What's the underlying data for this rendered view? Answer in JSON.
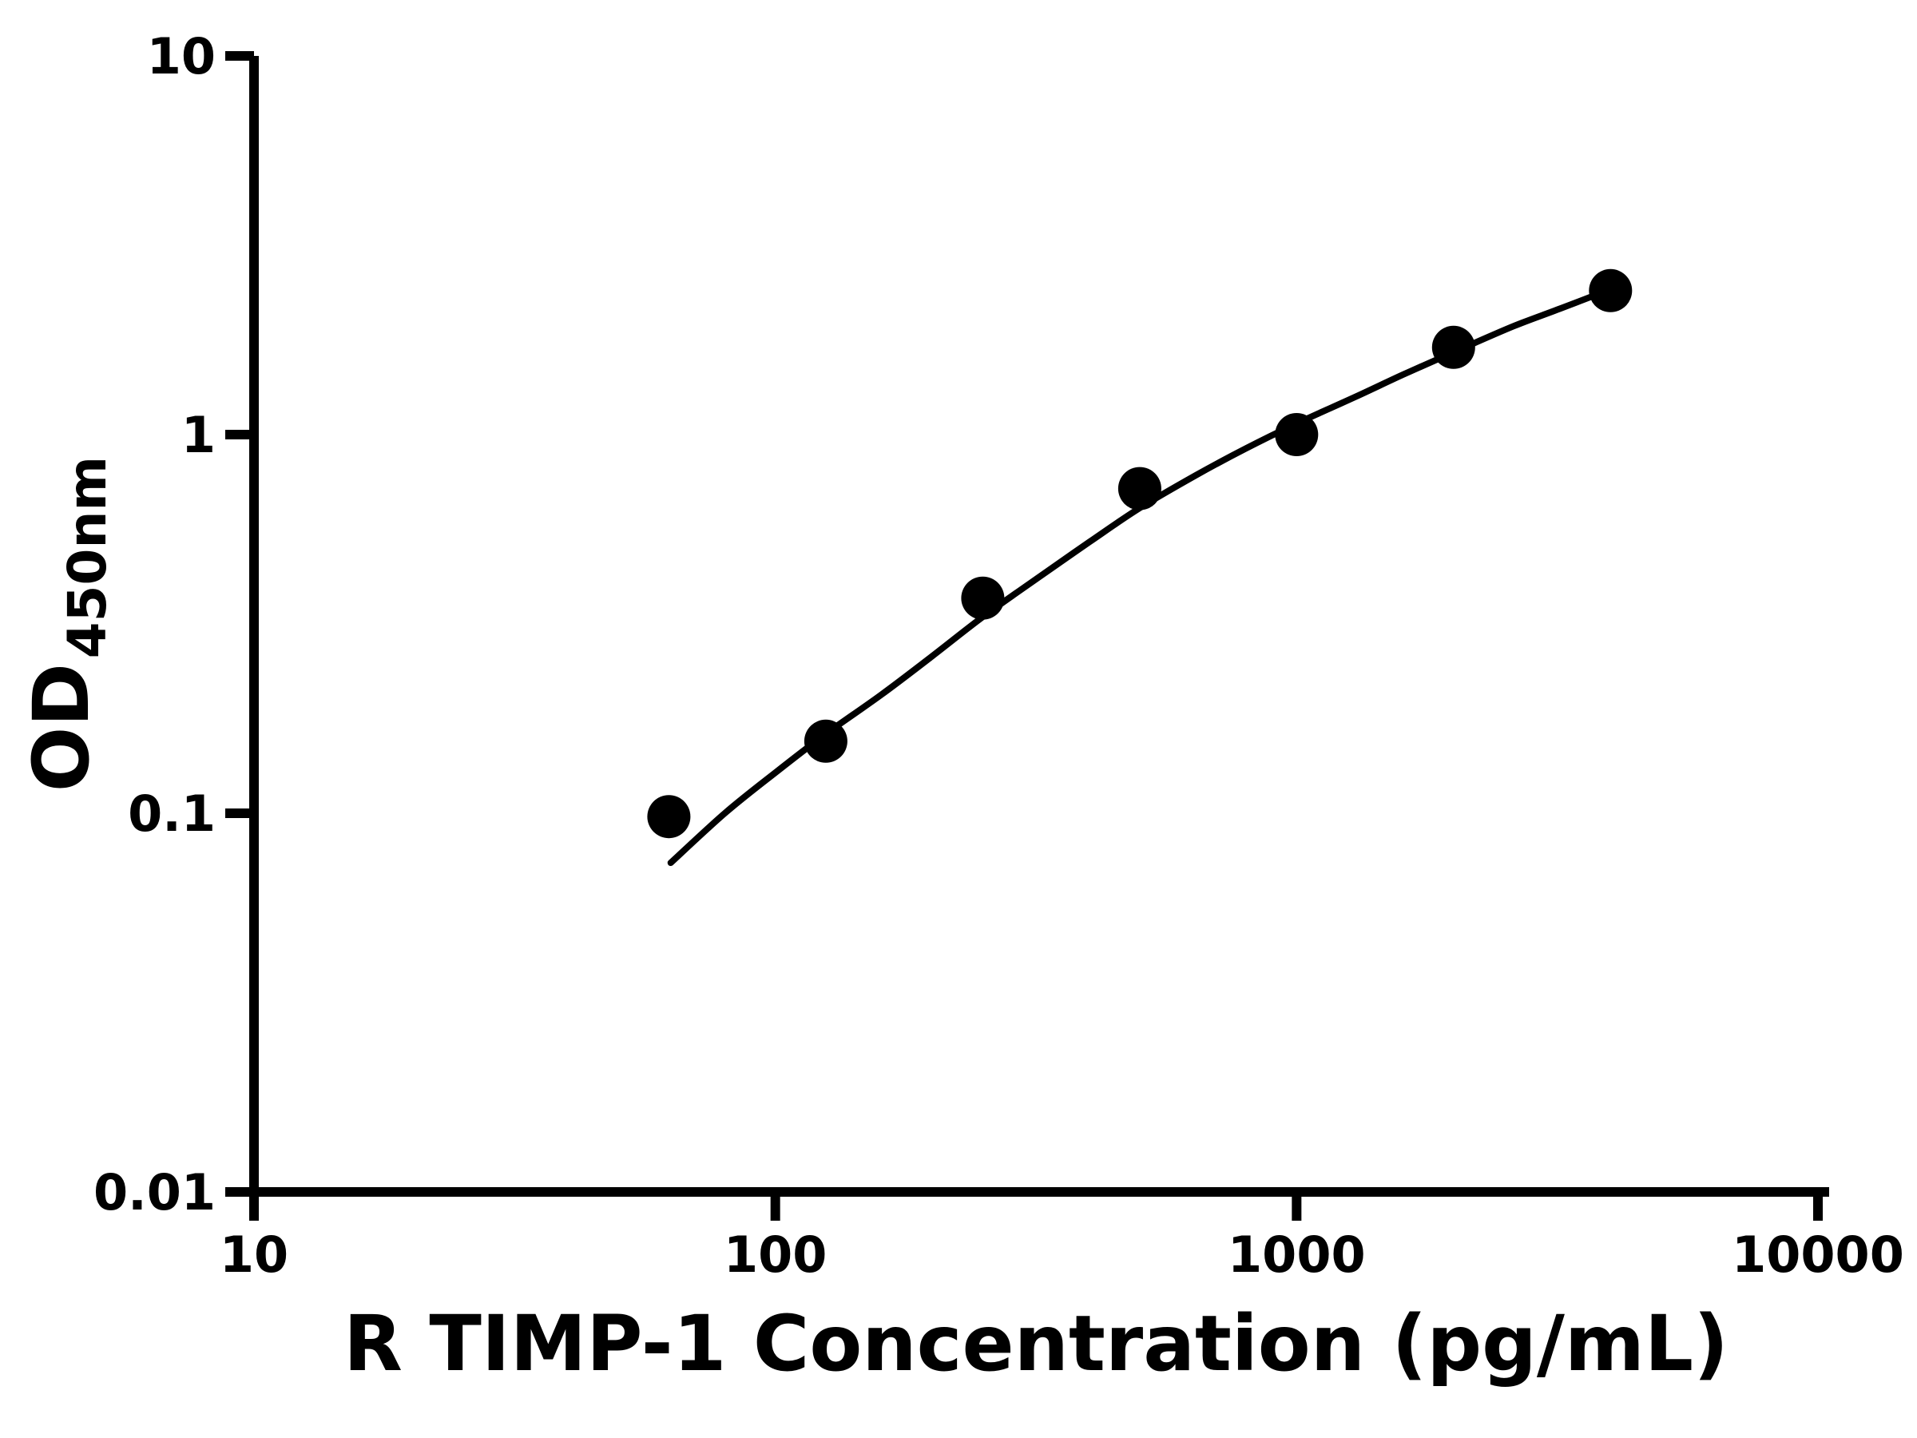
{
  "figure": {
    "background": "#ffffff"
  },
  "chart_data": {
    "type": "scatter",
    "title": "",
    "xlabel": "R TIMP-1 Concentration (pg/mL)",
    "ylabel_main": "OD",
    "ylabel_sub": "450nm",
    "x_scale": "log",
    "y_scale": "log",
    "xlim": [
      10,
      10000
    ],
    "ylim": [
      0.01,
      10
    ],
    "x_ticks": [
      10,
      100,
      1000,
      10000
    ],
    "x_tick_labels": [
      "10",
      "100",
      "1000",
      "10000"
    ],
    "y_ticks": [
      0.01,
      0.1,
      1,
      10
    ],
    "y_tick_labels": [
      "0.01",
      "0.1",
      "1",
      "10"
    ],
    "grid": false,
    "legend_position": "none",
    "axis_color": "#000000",
    "marker_color": "#000000",
    "line_color": "#000000",
    "points": [
      {
        "x": 62.5,
        "y": 0.098
      },
      {
        "x": 125,
        "y": 0.155
      },
      {
        "x": 250,
        "y": 0.37
      },
      {
        "x": 500,
        "y": 0.72
      },
      {
        "x": 1000,
        "y": 1.0
      },
      {
        "x": 2000,
        "y": 1.7
      },
      {
        "x": 4000,
        "y": 2.4
      }
    ],
    "fit_curve": [
      {
        "x": 63,
        "y": 0.074
      },
      {
        "x": 80,
        "y": 0.1
      },
      {
        "x": 100,
        "y": 0.128
      },
      {
        "x": 125,
        "y": 0.162
      },
      {
        "x": 160,
        "y": 0.206
      },
      {
        "x": 200,
        "y": 0.26
      },
      {
        "x": 250,
        "y": 0.33
      },
      {
        "x": 320,
        "y": 0.42
      },
      {
        "x": 400,
        "y": 0.52
      },
      {
        "x": 500,
        "y": 0.64
      },
      {
        "x": 640,
        "y": 0.78
      },
      {
        "x": 800,
        "y": 0.92
      },
      {
        "x": 1000,
        "y": 1.07
      },
      {
        "x": 1300,
        "y": 1.26
      },
      {
        "x": 1600,
        "y": 1.44
      },
      {
        "x": 2000,
        "y": 1.65
      },
      {
        "x": 2600,
        "y": 1.93
      },
      {
        "x": 3200,
        "y": 2.15
      },
      {
        "x": 4000,
        "y": 2.42
      }
    ]
  }
}
